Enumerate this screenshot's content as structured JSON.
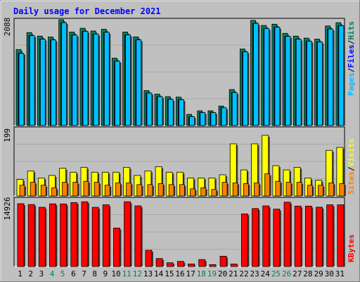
{
  "title": "Daily usage for December 2021",
  "colors": {
    "background": "#c0c0c0",
    "title": "#0000ff",
    "hits": "#00805c",
    "files": "#0000ff",
    "pages": "#00c0ff",
    "visits": "#ffff00",
    "sites": "#ff8000",
    "kbytes": "#ff0000",
    "weekend_label": "#00805c",
    "weekday_label": "#000000"
  },
  "chart_data": [
    {
      "type": "bar",
      "panel": "hits-files-pages",
      "y_label": "2088",
      "ylim": [
        0,
        2088
      ],
      "legend": [
        "Pages",
        "Files",
        "Hits"
      ],
      "categories": [
        "1",
        "2",
        "3",
        "4",
        "5",
        "6",
        "7",
        "8",
        "9",
        "10",
        "11",
        "12",
        "13",
        "14",
        "15",
        "16",
        "17",
        "18",
        "19",
        "20",
        "21",
        "22",
        "23",
        "24",
        "25",
        "26",
        "27",
        "28",
        "29",
        "30",
        "31"
      ],
      "series": [
        {
          "name": "Hits",
          "values": [
            1500,
            1835,
            1765,
            1748,
            2088,
            1845,
            1920,
            1865,
            1900,
            1330,
            1845,
            1750,
            690,
            620,
            570,
            560,
            220,
            290,
            290,
            385,
            710,
            1510,
            2075,
            1975,
            2000,
            1820,
            1765,
            1725,
            1705,
            1965,
            2030
          ]
        },
        {
          "name": "Files",
          "values": [
            1425,
            1775,
            1705,
            1690,
            2030,
            1785,
            1860,
            1805,
            1840,
            1270,
            1790,
            1690,
            640,
            570,
            515,
            510,
            175,
            255,
            255,
            350,
            650,
            1455,
            2015,
            1915,
            1940,
            1760,
            1705,
            1665,
            1650,
            1905,
            1970
          ]
        },
        {
          "name": "Pages",
          "values": [
            1425,
            1775,
            1705,
            1690,
            2030,
            1785,
            1860,
            1805,
            1840,
            1270,
            1790,
            1690,
            640,
            570,
            515,
            510,
            175,
            255,
            255,
            350,
            650,
            1455,
            2015,
            1915,
            1940,
            1760,
            1705,
            1665,
            1650,
            1905,
            1970
          ]
        }
      ]
    },
    {
      "type": "bar",
      "panel": "visits-sites",
      "y_label": "199",
      "ylim": [
        0,
        199
      ],
      "legend": [
        "Sites",
        "Visits"
      ],
      "categories": [
        "1",
        "2",
        "3",
        "4",
        "5",
        "6",
        "7",
        "8",
        "9",
        "10",
        "11",
        "12",
        "13",
        "14",
        "15",
        "16",
        "17",
        "18",
        "19",
        "20",
        "21",
        "22",
        "23",
        "24",
        "25",
        "26",
        "27",
        "28",
        "29",
        "30",
        "31"
      ],
      "series": [
        {
          "name": "Visits",
          "values": [
            51,
            77,
            55,
            63,
            85,
            73,
            88,
            73,
            73,
            73,
            88,
            63,
            77,
            90,
            73,
            73,
            55,
            55,
            55,
            65,
            160,
            80,
            160,
            186,
            93,
            80,
            88,
            55,
            48,
            140,
            149
          ]
        },
        {
          "name": "Sites",
          "values": [
            33,
            42,
            33,
            25,
            42,
            42,
            45,
            42,
            33,
            40,
            40,
            35,
            35,
            38,
            35,
            35,
            22,
            25,
            20,
            42,
            40,
            38,
            40,
            68,
            45,
            42,
            42,
            33,
            33,
            40,
            38
          ]
        }
      ]
    },
    {
      "type": "bar",
      "panel": "kbytes",
      "y_label": "14926",
      "ylim": [
        0,
        14926
      ],
      "legend": [
        "KBytes"
      ],
      "categories": [
        "1",
        "2",
        "3",
        "4",
        "5",
        "6",
        "7",
        "8",
        "9",
        "10",
        "11",
        "12",
        "13",
        "14",
        "15",
        "16",
        "17",
        "18",
        "19",
        "20",
        "21",
        "22",
        "23",
        "24",
        "25",
        "26",
        "27",
        "28",
        "29",
        "30",
        "31"
      ],
      "series": [
        {
          "name": "KBytes",
          "values": [
            14450,
            14260,
            13620,
            14420,
            14390,
            14710,
            14900,
            13620,
            14200,
            8840,
            14900,
            13950,
            3730,
            1830,
            860,
            1180,
            580,
            1600,
            430,
            2370,
            560,
            12110,
            13340,
            13950,
            13200,
            14800,
            13900,
            13900,
            13650,
            14200,
            14200
          ]
        }
      ]
    }
  ],
  "weekend_days": [
    4,
    5,
    11,
    12,
    18,
    19,
    25,
    26
  ]
}
